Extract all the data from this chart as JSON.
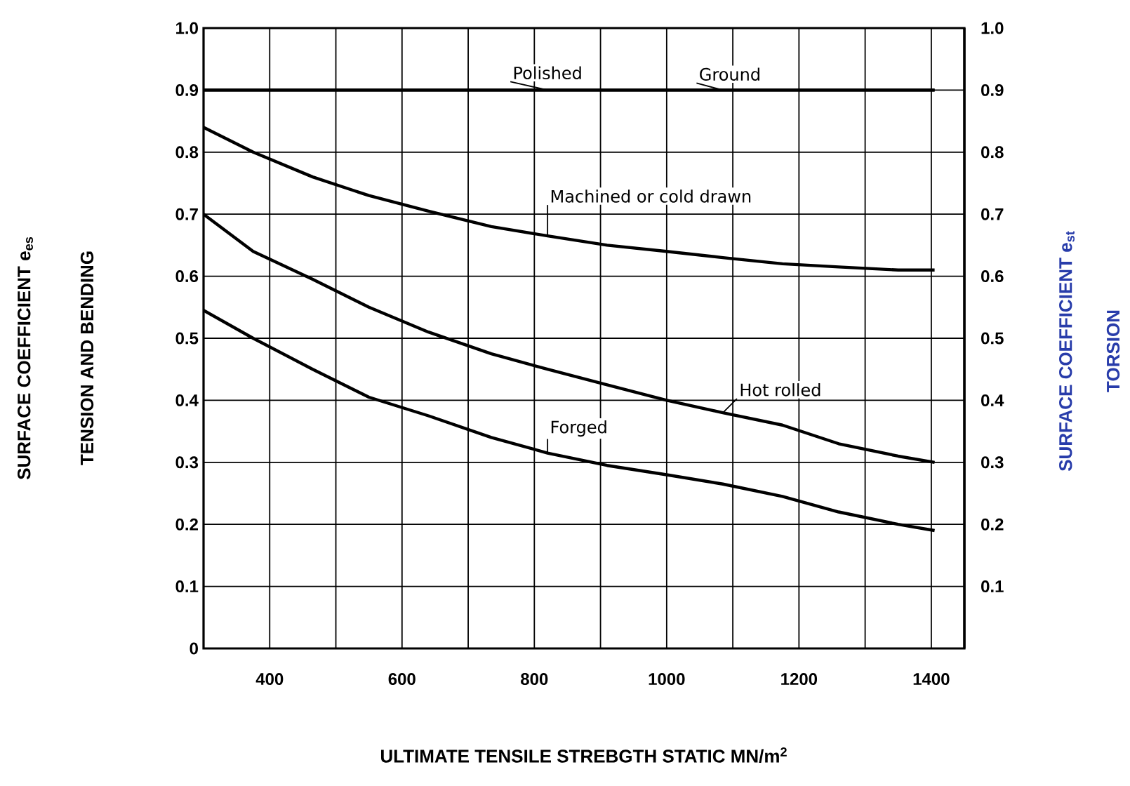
{
  "chart_data": {
    "type": "line",
    "xlabel": "ULTIMATE TENSILE STREBGTH STATIC      MN/m$^{2}$",
    "y2label": "SURFACE  COEFFICIENT e$_{st}$",
    "x": [
      300,
      375,
      465,
      550,
      640,
      735,
      820,
      910,
      1000,
      1085,
      1175,
      1260,
      1350,
      1405
    ],
    "series": [
      {
        "name": "Polished",
        "color": "#000000",
        "values": [
          0.9,
          0.9,
          0.9,
          0.9,
          0.9,
          0.9,
          0.9,
          0.9,
          0.9,
          0.9,
          0.9,
          0.9,
          0.9,
          0.9
        ]
      },
      {
        "name": "Ground",
        "color": "#000000",
        "values": [
          0.9,
          0.9,
          0.9,
          0.9,
          0.9,
          0.9,
          0.9,
          0.9,
          0.9,
          0.9,
          0.9,
          0.9,
          0.9,
          0.9
        ]
      },
      {
        "name": "Machined or cold drawn",
        "color": "#000000",
        "values": [
          0.84,
          0.8,
          0.76,
          0.73,
          0.705,
          0.68,
          0.665,
          0.65,
          0.64,
          0.63,
          0.62,
          0.615,
          0.61,
          0.61
        ]
      },
      {
        "name": "Hot rolled",
        "color": "#000000",
        "values": [
          0.7,
          0.64,
          0.595,
          0.55,
          0.51,
          0.475,
          0.45,
          0.425,
          0.4,
          0.38,
          0.36,
          0.33,
          0.31,
          0.3
        ]
      },
      {
        "name": "Forged",
        "color": "#000000",
        "values": [
          0.545,
          0.5,
          0.45,
          0.405,
          0.375,
          0.34,
          0.315,
          0.295,
          0.28,
          0.265,
          0.245,
          0.22,
          0.2,
          0.19
        ]
      }
    ],
    "xlim": [
      300,
      1450
    ],
    "xticks": [
      400,
      {
        "value": 500,
        "label": null
      },
      600,
      {
        "value": 700,
        "label": null
      },
      800,
      {
        "value": 900,
        "label": null
      },
      1000,
      {
        "value": 1100,
        "label": null
      },
      1200,
      {
        "value": 1300,
        "label": null
      },
      1400
    ],
    "ylim": [
      0,
      1
    ],
    "yticks": [
      0,
      0.1,
      0.2,
      0.3,
      0.4,
      0.5,
      0.6,
      0.7,
      0.8,
      0.9,
      {
        "value": 1,
        "label": "1.0"
      }
    ],
    "y2lim": [
      0,
      1
    ],
    "y2ticks": [
      0.1,
      0.2,
      0.3,
      0.4,
      0.5,
      0.6,
      0.7,
      0.8,
      0.9,
      {
        "value": 1,
        "label": "1.0"
      }
    ],
    "grid": true,
    "annotations": [
      "SURFACE  COEFFICIENT e$_{es}$",
      "TENSION AND BENDING",
      "TORSION"
    ]
  }
}
